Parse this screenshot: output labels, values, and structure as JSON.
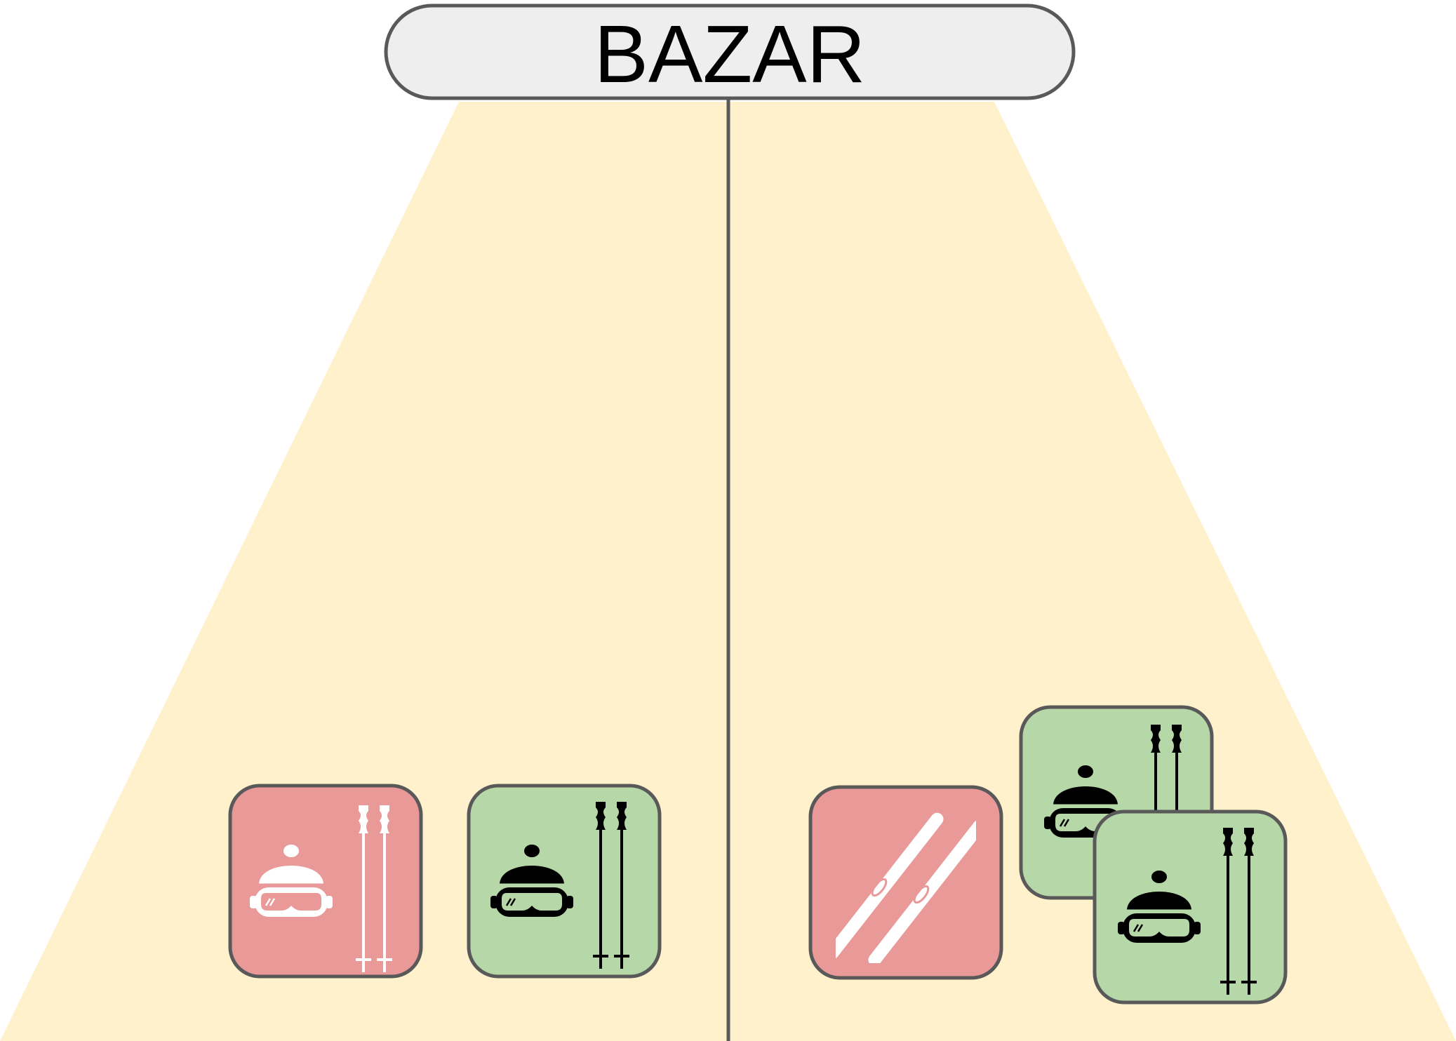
{
  "title": "BAZAR",
  "colors": {
    "stand_fill": "#fff1cc",
    "sign_fill": "#eeeeee",
    "outline": "#595959",
    "card_red": "#ea9999",
    "card_green": "#b6d7a8"
  },
  "cards": [
    {
      "side": "left",
      "color": "red",
      "icons": [
        "helmet-goggles-icon",
        "ski-poles-icon"
      ],
      "icon_color": "white"
    },
    {
      "side": "left",
      "color": "green",
      "icons": [
        "helmet-goggles-icon",
        "ski-poles-icon"
      ],
      "icon_color": "black"
    },
    {
      "side": "right",
      "color": "red",
      "icons": [
        "skis-icon"
      ],
      "icon_color": "white"
    },
    {
      "side": "right",
      "color": "green",
      "icons": [
        "helmet-goggles-icon",
        "ski-poles-icon"
      ],
      "icon_color": "black"
    },
    {
      "side": "right",
      "color": "green",
      "icons": [
        "helmet-goggles-icon",
        "ski-poles-icon"
      ],
      "icon_color": "black"
    }
  ]
}
